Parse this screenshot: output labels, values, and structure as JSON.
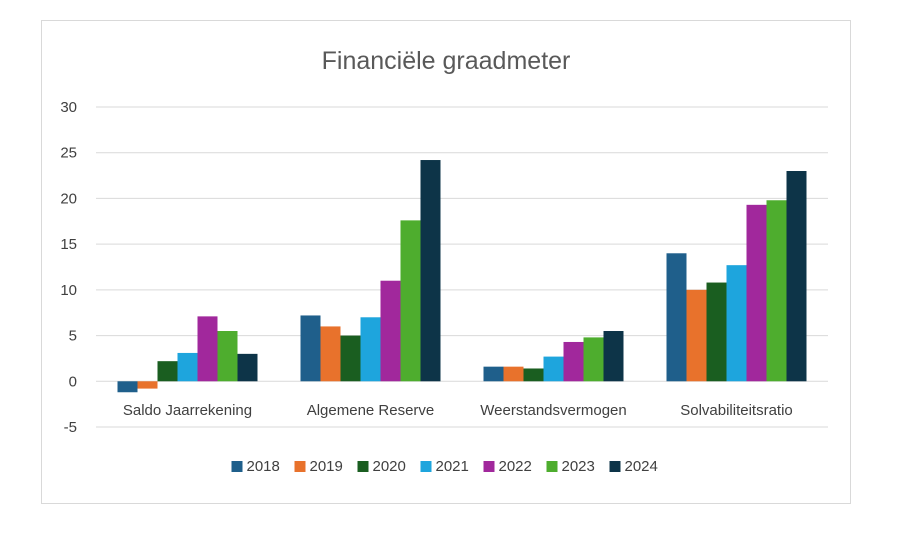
{
  "chart_data": {
    "type": "bar",
    "title": "Financiële graadmeter",
    "xlabel": "",
    "ylabel": "",
    "ylim": [
      -5,
      30
    ],
    "yticks": [
      30,
      25,
      20,
      15,
      10,
      5,
      0,
      -5
    ],
    "grid": true,
    "legend_position": "bottom",
    "categories": [
      "Saldo Jaarrekening",
      "Algemene Reserve",
      "Weerstandsvermogen",
      "Solvabiliteitsratio"
    ],
    "series": [
      {
        "name": "2018",
        "color": "#1f5f8b",
        "values": [
          -1.2,
          7.2,
          1.6,
          14.0
        ]
      },
      {
        "name": "2019",
        "color": "#e8722c",
        "values": [
          -0.8,
          6.0,
          1.6,
          10.0
        ]
      },
      {
        "name": "2020",
        "color": "#1a5e20",
        "values": [
          2.2,
          5.0,
          1.4,
          10.8
        ]
      },
      {
        "name": "2021",
        "color": "#1ea5dd",
        "values": [
          3.1,
          7.0,
          2.7,
          12.7
        ]
      },
      {
        "name": "2022",
        "color": "#a1289c",
        "values": [
          7.1,
          11.0,
          4.3,
          19.3
        ]
      },
      {
        "name": "2023",
        "color": "#4ead2e",
        "values": [
          5.5,
          17.6,
          4.8,
          19.8
        ]
      },
      {
        "name": "2024",
        "color": "#0d3448",
        "values": [
          3.0,
          24.2,
          5.5,
          23.0
        ]
      }
    ]
  }
}
